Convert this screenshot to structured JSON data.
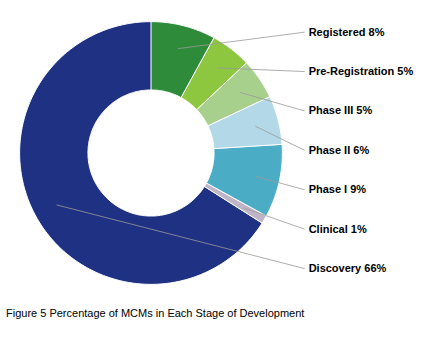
{
  "chart_data": {
    "type": "pie",
    "categories": [
      "Registered 8%",
      "Pre-Registration 5%",
      "Phase III 5%",
      "Phase II 6%",
      "Phase I 9%",
      "Clinical 1%",
      "Discovery 66%"
    ],
    "values": [
      8,
      5,
      5,
      6,
      9,
      1,
      66
    ],
    "colors": [
      "#2e8b3a",
      "#8dc63f",
      "#a8d08d",
      "#b3d9e8",
      "#4bacc6",
      "#c0b4c8",
      "#1f3182"
    ],
    "caption": "Figure 5 Percentage of MCMs in Each Stage of Development"
  }
}
